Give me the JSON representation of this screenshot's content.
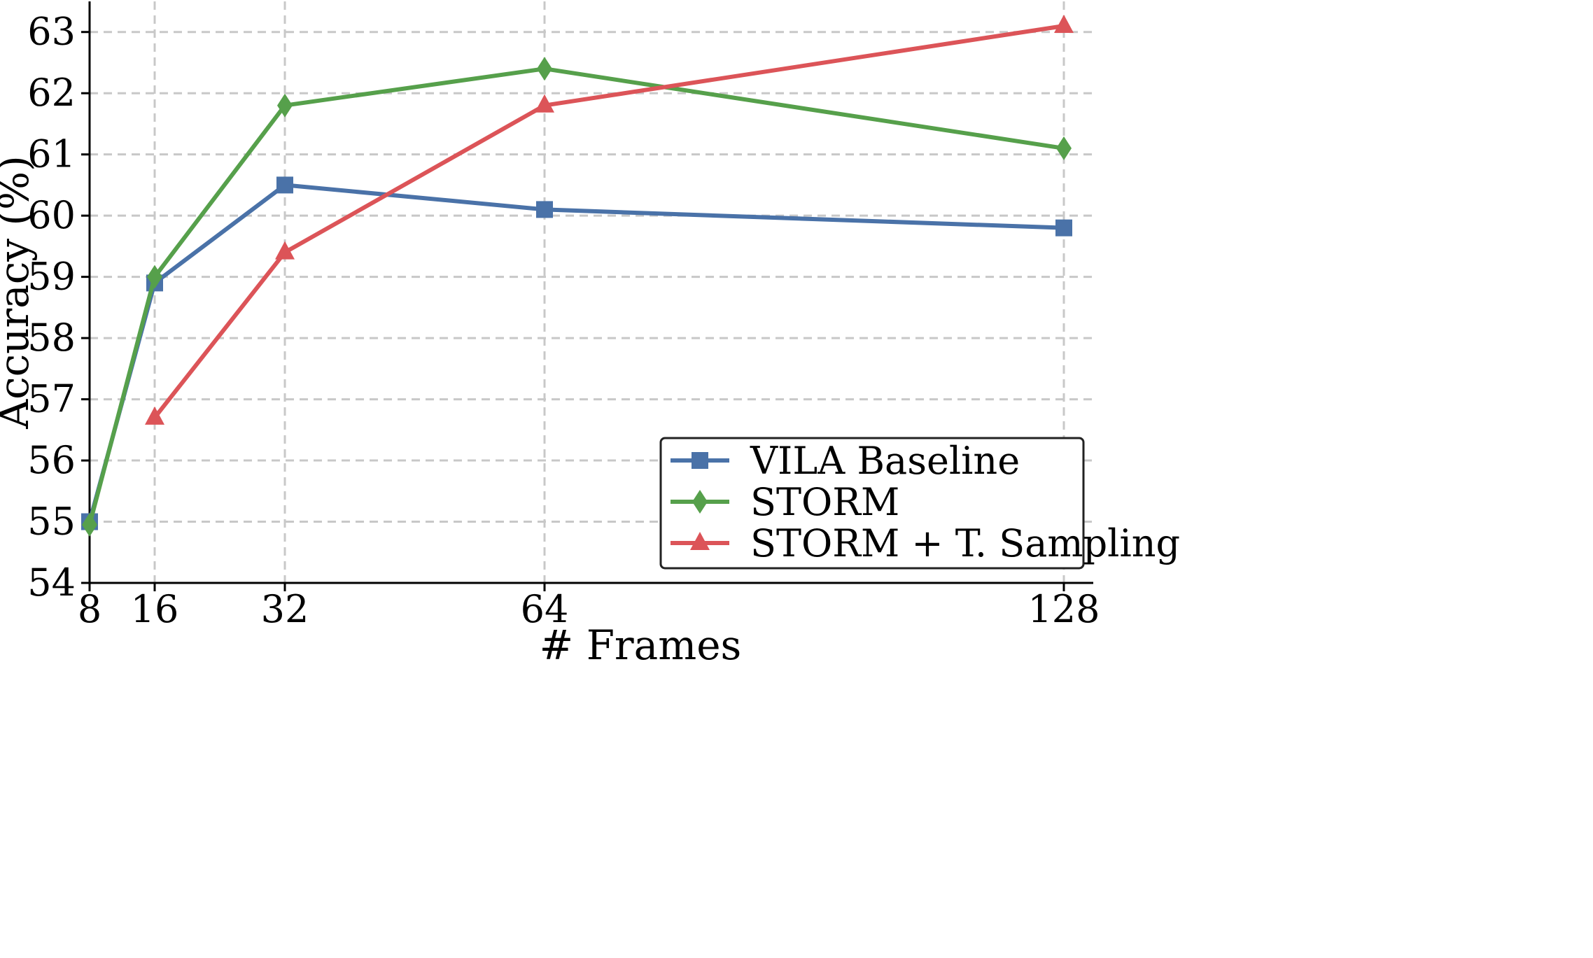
{
  "chart_data": {
    "type": "line",
    "title": "",
    "xlabel": "# Frames",
    "ylabel": "Accuracy (%)",
    "x": [
      8,
      16,
      32,
      64,
      128
    ],
    "x_tick_labels": [
      "8",
      "16",
      "32",
      "64",
      "128"
    ],
    "y_ticks": [
      54,
      55,
      56,
      57,
      58,
      59,
      60,
      61,
      62,
      63
    ],
    "y_tick_labels": [
      "54",
      "55",
      "56",
      "57",
      "58",
      "59",
      "60",
      "61",
      "62",
      "63"
    ],
    "ylim": [
      54,
      63.5
    ],
    "grid": true,
    "legend_position": "lower-right",
    "series": [
      {
        "name": "VILA Baseline",
        "color": "#4a72a8",
        "marker": "square",
        "x": [
          8,
          16,
          32,
          64,
          128
        ],
        "values": [
          55.0,
          58.9,
          60.5,
          60.1,
          59.8
        ]
      },
      {
        "name": "STORM",
        "color": "#56a04b",
        "marker": "diamond",
        "x": [
          8,
          16,
          32,
          64,
          128
        ],
        "values": [
          54.95,
          59.0,
          61.8,
          62.4,
          61.1
        ]
      },
      {
        "name": "STORM + T. Sampling",
        "color": "#dc5458",
        "marker": "triangle",
        "x": [
          16,
          32,
          64,
          128
        ],
        "values": [
          56.7,
          59.4,
          61.8,
          63.1
        ]
      }
    ]
  }
}
